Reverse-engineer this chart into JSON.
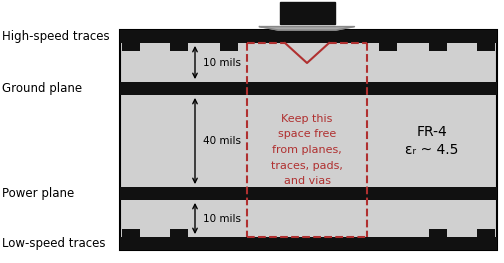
{
  "fig_width": 5.04,
  "fig_height": 2.63,
  "dpi": 100,
  "bg_color": "#ffffff",
  "pcb_color": "#d0d0d0",
  "plane_color": "#111111",
  "dashed_color": "#b03030",
  "label_high_speed": "High-speed traces",
  "label_ground": "Ground plane",
  "label_power": "Power plane",
  "label_low_speed": "Low-speed traces",
  "label_10mils_top": "10 mils",
  "label_40mils": "40 mils",
  "label_10mils_bot": "10 mils",
  "keep_free_text": "Keep this\nspace free\nfrom planes,\ntraces, pads,\nand vias",
  "fr4_line1": "FR-4",
  "fr4_line2": "εᵣ ~ 4.5",
  "connector_gray": "#aaaaaa",
  "connector_black": "#111111"
}
